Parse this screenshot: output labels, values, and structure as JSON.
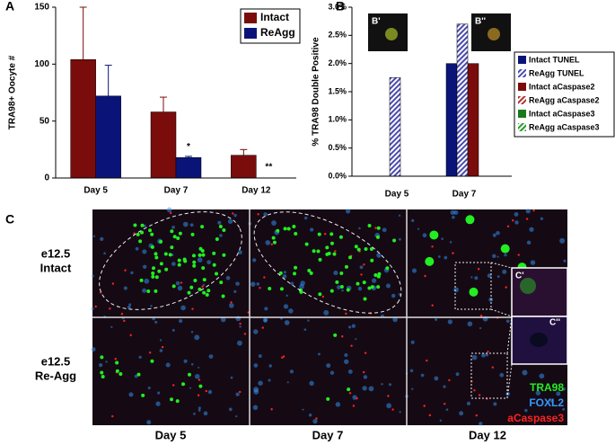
{
  "chart_data": [
    {
      "type": "bar",
      "panel_label": "A",
      "ylabel": "TRA98+ Oocyte #",
      "categories": [
        "Day 5",
        "Day 7",
        "Day 12"
      ],
      "series": [
        {
          "name": "Intact",
          "color": "#7a0c0c",
          "values": [
            104,
            58,
            20
          ],
          "errors": [
            46,
            13,
            5
          ]
        },
        {
          "name": "ReAgg",
          "color": "#0a1478",
          "values": [
            72,
            18,
            0
          ],
          "errors": [
            27,
            1,
            0
          ]
        }
      ],
      "annotations": [
        "*",
        "**"
      ],
      "ylim": [
        0,
        150
      ],
      "yticks": [
        0,
        50,
        100,
        150
      ],
      "legend": "upper right"
    },
    {
      "type": "bar",
      "panel_label": "B",
      "ylabel": "% TRA98 Double Positive",
      "categories": [
        "Day 5",
        "Day 7"
      ],
      "series": [
        {
          "name": "Intact TUNEL",
          "color": "#0a1478",
          "pattern": "solid",
          "values": [
            null,
            2.0
          ]
        },
        {
          "name": "ReAgg TUNEL",
          "color": "#4a4ab0",
          "pattern": "hatch",
          "values": [
            1.75,
            2.7
          ]
        },
        {
          "name": "Intact aCaspase2",
          "color": "#7a0c0c",
          "pattern": "solid",
          "values": [
            null,
            2.0
          ]
        },
        {
          "name": "ReAgg aCaspase2",
          "color": "#b03030",
          "pattern": "hatch",
          "values": [
            null,
            null
          ]
        },
        {
          "name": "Intact aCaspase3",
          "color": "#1a7a1a",
          "pattern": "solid",
          "values": [
            null,
            null
          ]
        },
        {
          "name": "ReAgg aCaspase3",
          "color": "#2a9a2a",
          "pattern": "hatch",
          "values": [
            null,
            null
          ]
        }
      ],
      "insets": [
        "B'",
        "B''"
      ],
      "ylim": [
        0,
        3
      ],
      "yticks": [
        {
          "value": 0,
          "label": "0.0%"
        },
        {
          "value": 0.5,
          "label": "0.5%"
        },
        {
          "value": 1,
          "label": "1.0%"
        },
        {
          "value": 1.5,
          "label": "1.5%"
        },
        {
          "value": 2,
          "label": "2.0%"
        },
        {
          "value": 2.5,
          "label": "2.5%"
        },
        {
          "value": 3,
          "label": "3.0%"
        }
      ],
      "legend": "right"
    }
  ],
  "panel_c": {
    "label": "C",
    "rows": [
      [
        "e12.5",
        "Intact"
      ],
      [
        "e12.5",
        "Re-Agg"
      ]
    ],
    "columns": [
      "Day 5",
      "Day 7",
      "Day 12"
    ],
    "insets": [
      "C'",
      "C''"
    ],
    "stain_legend": [
      {
        "name": "TRA98",
        "color": "#22ee22"
      },
      {
        "name": "FOXL2",
        "color": "#3399ff"
      },
      {
        "name": "aCaspase3",
        "color": "#ff2222"
      }
    ]
  }
}
